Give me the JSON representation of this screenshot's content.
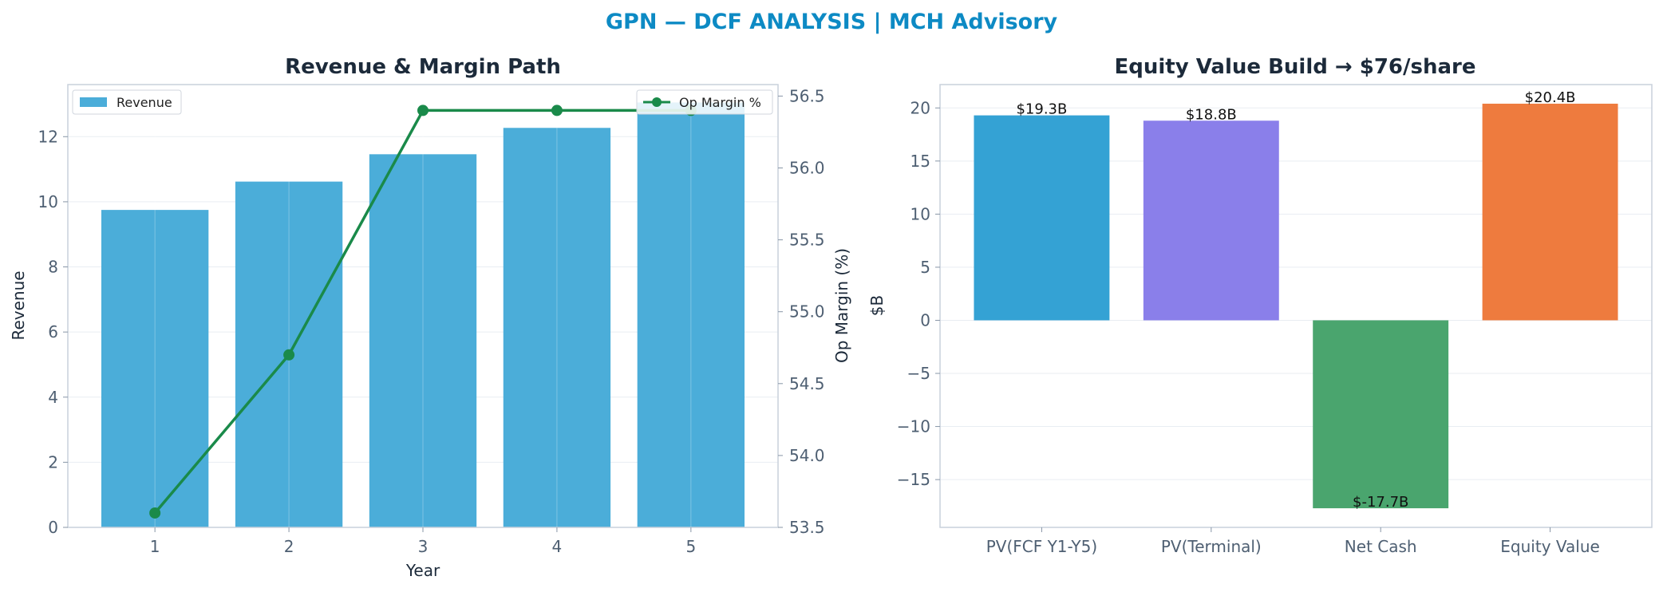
{
  "suptitle": "GPN — DCF ANALYSIS | MCH Advisory",
  "chart_data": [
    {
      "type": "bar",
      "title": "Revenue & Margin Path",
      "xlabel": "Year",
      "ylabel": "Revenue",
      "categories": [
        "1",
        "2",
        "3",
        "4",
        "5"
      ],
      "ylim": [
        0,
        13.6
      ],
      "yticks": [
        0,
        2,
        4,
        6,
        8,
        10,
        12
      ],
      "grid": true,
      "series": [
        {
          "name": "Revenue",
          "type": "bar",
          "color": "#4badd9",
          "values": [
            9.75,
            10.62,
            11.46,
            12.27,
            13.05
          ]
        },
        {
          "name": "Op Margin %",
          "type": "line",
          "axis": "right",
          "color": "#1a8a4a",
          "values": [
            53.6,
            54.7,
            56.4,
            56.4,
            56.4
          ]
        }
      ],
      "y2label": "Op Margin (%)",
      "y2lim": [
        53.5,
        56.58
      ],
      "y2ticks": [
        "53.5",
        "54.0",
        "54.5",
        "55.0",
        "55.5",
        "56.0",
        "56.5"
      ],
      "legends": [
        {
          "label": "Revenue",
          "placement": "top-left"
        },
        {
          "label": "Op Margin %",
          "placement": "top-right"
        }
      ]
    },
    {
      "type": "bar",
      "title": "Equity Value Build → $76/share",
      "xlabel": "",
      "ylabel": "$B",
      "categories": [
        "PV(FCF Y1-Y5)",
        "PV(Terminal)",
        "Net Cash",
        "Equity Value"
      ],
      "values": [
        19.3,
        18.8,
        -17.7,
        20.4
      ],
      "data_labels": [
        "$19.3B",
        "$18.8B",
        "$-17.7B",
        "$20.4B"
      ],
      "colors": [
        "#34a2d4",
        "#8a7fea",
        "#4aa56e",
        "#ee7b3e"
      ],
      "ylim": [
        -19.5,
        22.2
      ],
      "yticks": [
        20,
        15,
        10,
        5,
        0,
        -5,
        -10,
        -15
      ],
      "ytick_labels": [
        "20",
        "15",
        "10",
        "5",
        "0",
        "−5",
        "−10",
        "−15"
      ],
      "grid": true
    }
  ]
}
